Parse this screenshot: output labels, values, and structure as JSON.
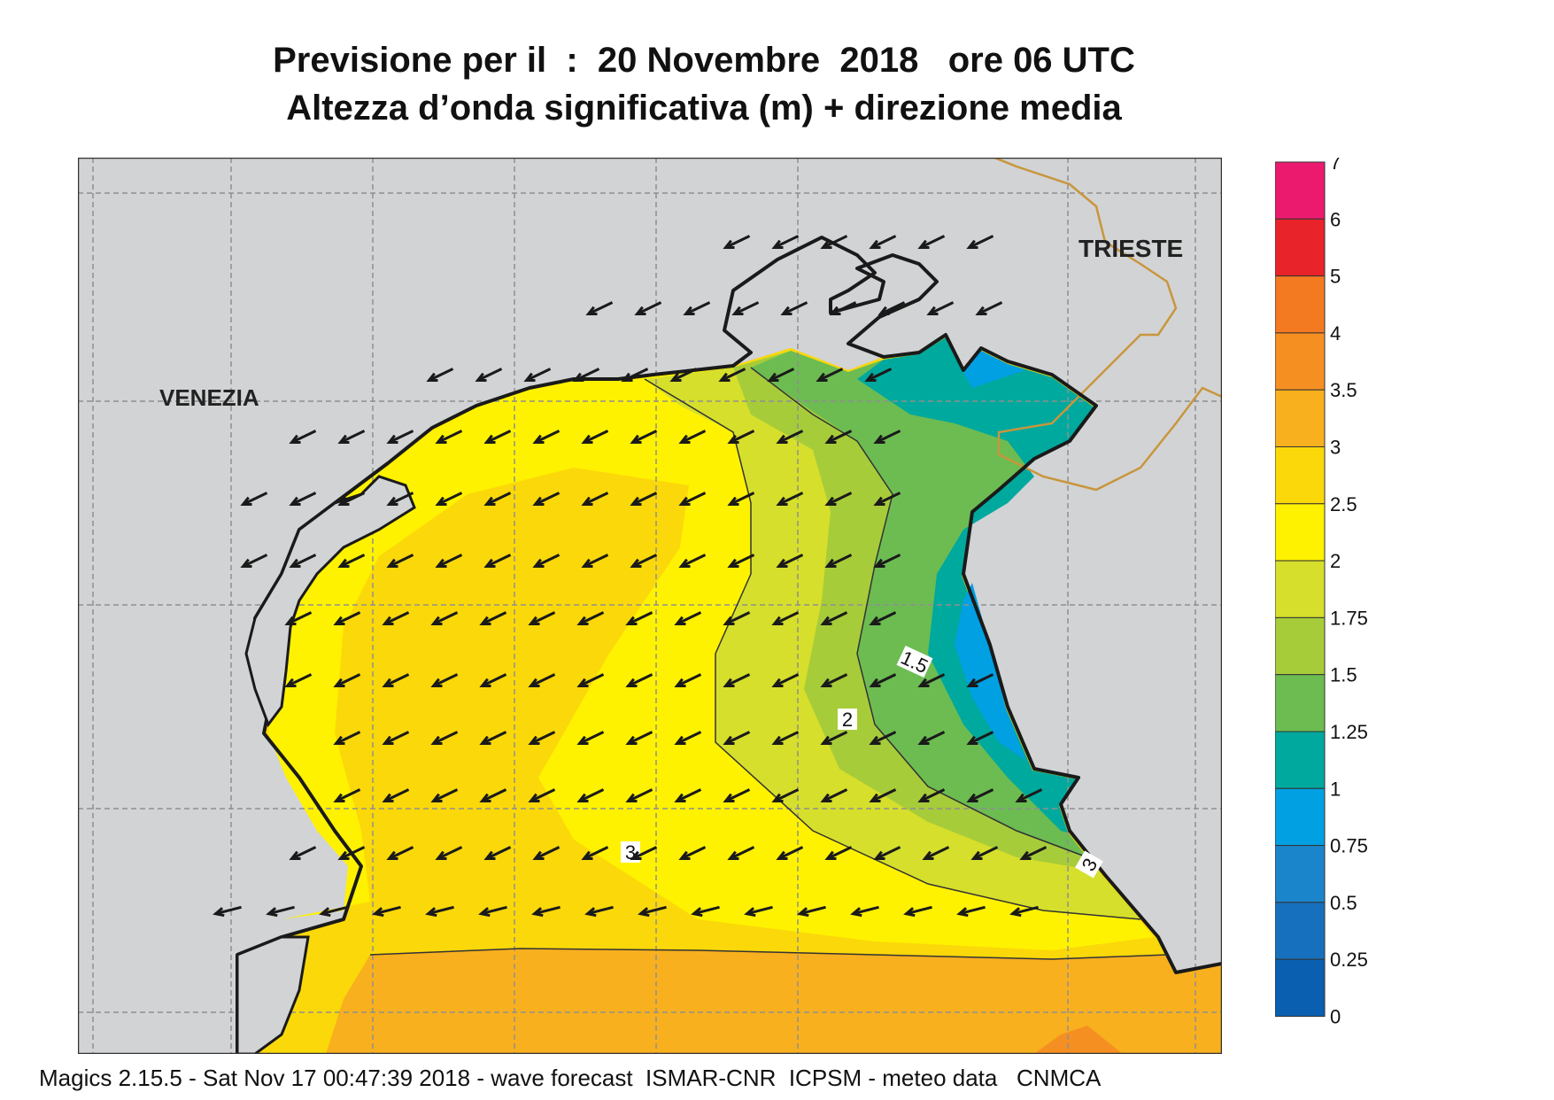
{
  "title": {
    "line1": "Previsione per il  :  20 Novembre  2018   ore 06 UTC",
    "line2": "Altezza d’onda significativa (m) + direzione media"
  },
  "map": {
    "cities": [
      "VENEZIA",
      "TRIESTE"
    ],
    "contour_labels": [
      "1.5",
      "2",
      "3",
      "3"
    ],
    "arrow_direction": "south-west",
    "colors": {
      "land": "#d2d3d5",
      "coast": "#1a1a1a",
      "border": "#c8963c",
      "grid": "#8f8f8f"
    }
  },
  "legend": {
    "labels": [
      "7",
      "6",
      "5",
      "4",
      "3.5",
      "3",
      "2.5",
      "2",
      "1.75",
      "1.5",
      "1.25",
      "1",
      "0.75",
      "0.5",
      "0.25",
      "0"
    ],
    "colors": [
      "#ec1a6f",
      "#e8232a",
      "#f47a22",
      "#f68f22",
      "#f8b01e",
      "#fbd80a",
      "#fff200",
      "#d6df2b",
      "#a7cc3a",
      "#6cbc52",
      "#00a99d",
      "#00a0e3",
      "#1b85cc",
      "#1670bd",
      "#0a5fb0"
    ]
  },
  "footer": "Magics 2.15.5 - Sat Nov 17 00:47:39 2018 - wave forecast  ISMAR-CNR  ICPSM - meteo data   CNMCA"
}
